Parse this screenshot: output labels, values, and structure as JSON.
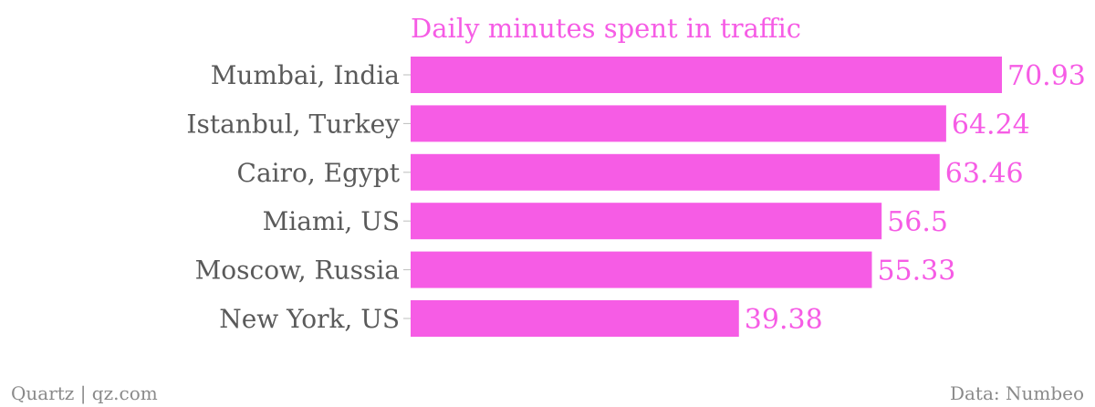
{
  "chart_data": {
    "type": "bar",
    "orientation": "horizontal",
    "title": "Daily minutes spent in traffic",
    "categories": [
      "Mumbai, India",
      "Istanbul, Turkey",
      "Cairo, Egypt",
      "Miami, US",
      "Moscow, Russia",
      "New York, US"
    ],
    "values": [
      70.93,
      64.24,
      63.46,
      56.5,
      55.33,
      39.38
    ],
    "value_labels": [
      "70.93",
      "64.24",
      "63.46",
      "56.5",
      "55.33",
      "39.38"
    ],
    "xlim": [
      0,
      70.93
    ],
    "grid": false,
    "bar_color": "#f65ce5"
  },
  "footer": {
    "source_left": "Quartz | qz.com",
    "source_right": "Data: Numbeo"
  }
}
